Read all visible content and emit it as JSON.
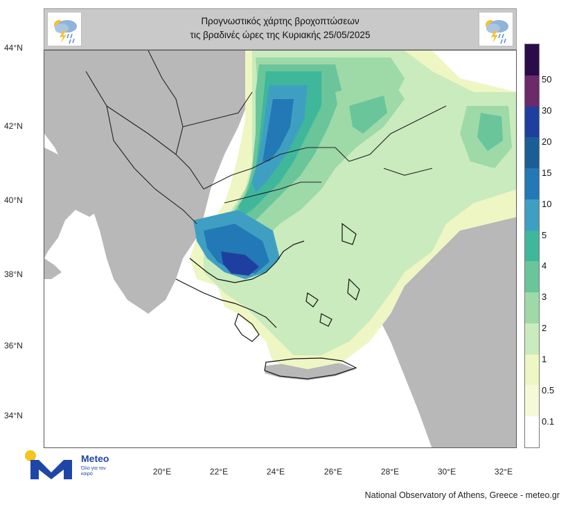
{
  "header": {
    "title_line1": "Προγνωστικός χάρτης βροχοπτώσεων",
    "title_line2": "τις βραδινές ώρες  της Κυριακής 25/05/2025",
    "icon": "rain-thunder-cloud-icon"
  },
  "map": {
    "lat_labels": [
      "44°N",
      "42°N",
      "40°N",
      "38°N",
      "36°N",
      "34°N"
    ],
    "lon_labels": [
      "20°E",
      "22°E",
      "24°E",
      "26°E",
      "28°E",
      "30°E",
      "32°E"
    ]
  },
  "legend": {
    "labels": [
      "50",
      "30",
      "20",
      "15",
      "10",
      "5",
      "4",
      "3",
      "2",
      "1",
      "0.5",
      "0.1"
    ],
    "colors": [
      "#2b0c4a",
      "#6b2a6a",
      "#1f3fa0",
      "#1b5e96",
      "#2379b5",
      "#3f9fc2",
      "#3fb79a",
      "#6ac59a",
      "#9ed9a8",
      "#c9ebbd",
      "#eef6c4",
      "#f6f9d7",
      "#ffffff"
    ]
  },
  "logo": {
    "name": "Meteo",
    "tagline": "Όλο για τον καιρό"
  },
  "footer": {
    "credit": "National Observatory of Athens, Greece - meteo.gr"
  }
}
